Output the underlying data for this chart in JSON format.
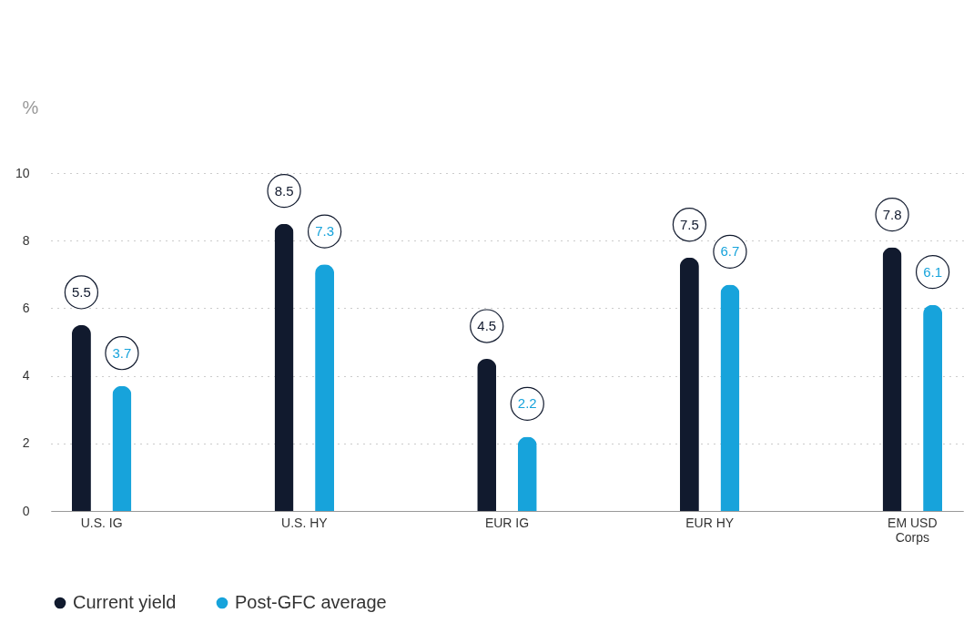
{
  "chart_data": {
    "type": "bar",
    "ylabel": "%",
    "categories": [
      "U.S. IG",
      "U.S. HY",
      "EUR IG",
      "EUR HY",
      "EM USD Corps"
    ],
    "series": [
      {
        "name": "Current yield",
        "color": "#111a2e",
        "values": [
          5.5,
          8.5,
          4.5,
          7.5,
          7.8
        ]
      },
      {
        "name": "Post-GFC average",
        "color": "#17a3db",
        "values": [
          3.7,
          7.3,
          2.2,
          6.7,
          6.1
        ]
      }
    ],
    "ylim": [
      0,
      10
    ],
    "yticks": [
      0,
      2,
      4,
      6,
      8,
      10
    ],
    "grid": "y",
    "legend": "bottom left",
    "data_labels": true
  }
}
